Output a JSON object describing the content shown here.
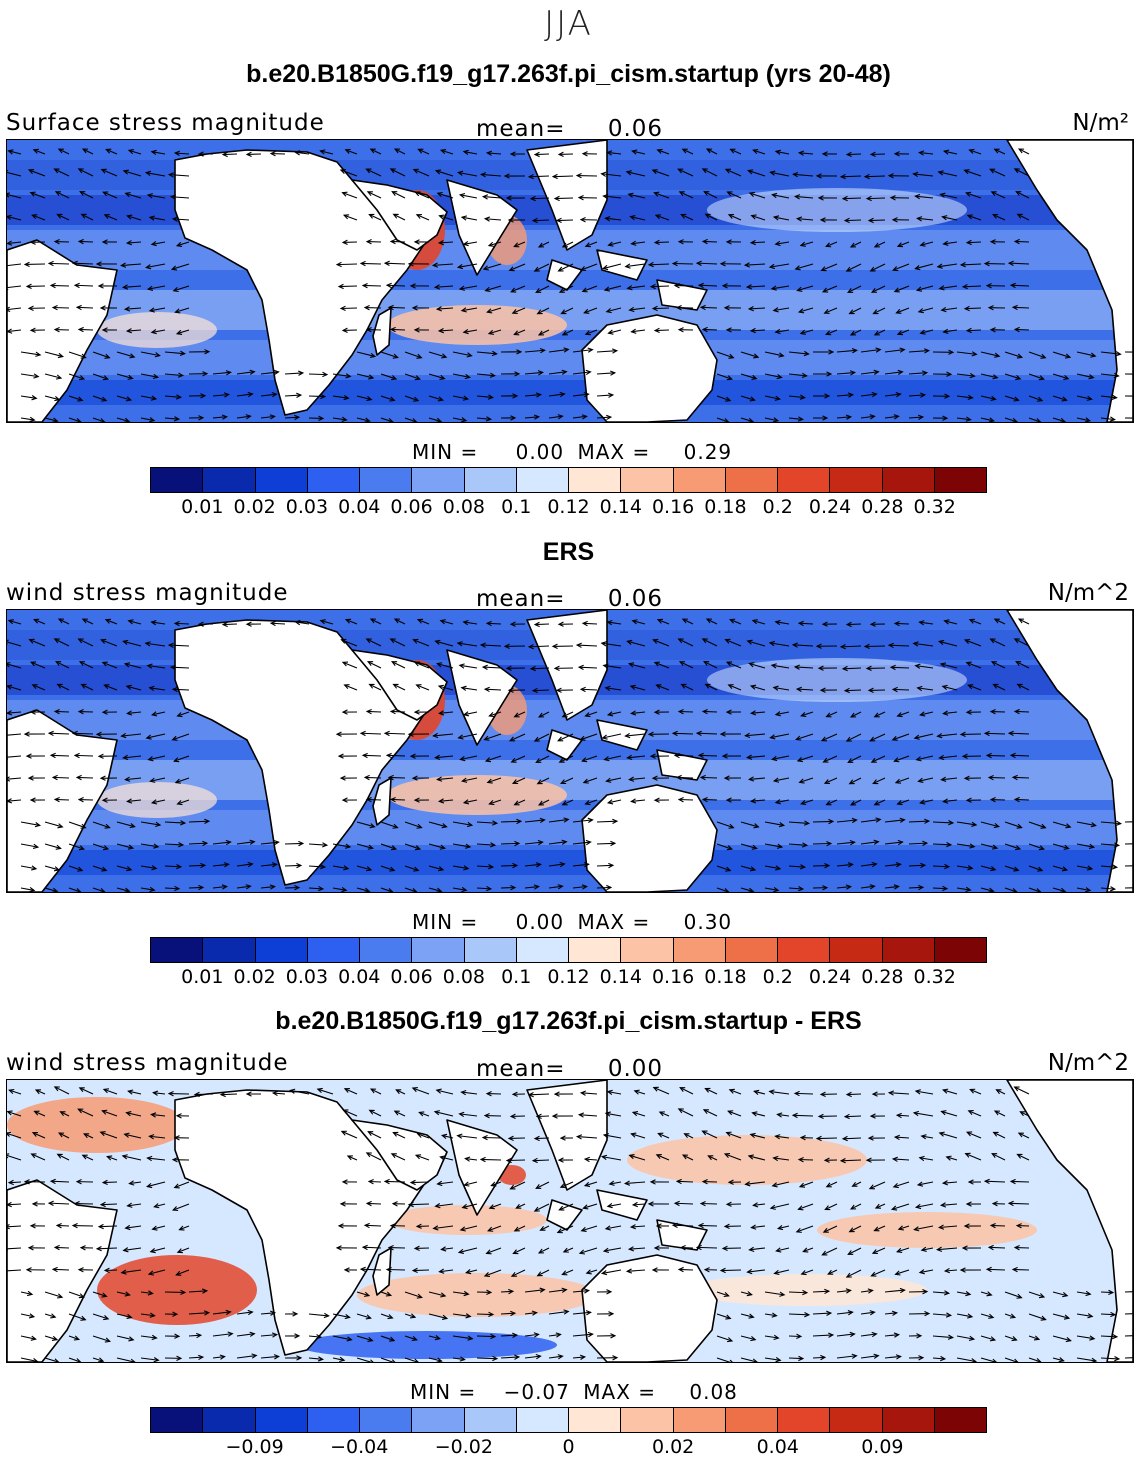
{
  "season": "JJA",
  "colors": {
    "ocean_base": "#3a6fe6",
    "land": "#ffffff",
    "coast": "#000000",
    "diff_base": "#d9ecff"
  },
  "panels": [
    {
      "title": "b.e20.B1850G.f19_g17.263f.pi_cism.startup (yrs 20-48)",
      "variable": "Surface stress magnitude",
      "mean_label": "mean=",
      "mean_value": "0.06",
      "units": "N/m²",
      "min_label": "MIN =",
      "min_value": "0.00",
      "max_label": "MAX =",
      "max_value": "0.29",
      "colorbar": {
        "colors": [
          "#08117a",
          "#0a2aad",
          "#0d3fd6",
          "#2d5ff0",
          "#4a7cf0",
          "#7ba2f5",
          "#aac7fa",
          "#d6e8ff",
          "#ffe6d5",
          "#fdc3a6",
          "#f79b74",
          "#ee7049",
          "#e2452a",
          "#c72a14",
          "#a6160c",
          "#7d0404"
        ],
        "ticks": [
          "0.01",
          "0.02",
          "0.03",
          "0.04",
          "0.06",
          "0.08",
          "0.1",
          "0.12",
          "0.14",
          "0.16",
          "0.18",
          "0.2",
          "0.24",
          "0.28",
          "0.32"
        ]
      }
    },
    {
      "title": "ERS",
      "variable": "wind stress magnitude",
      "mean_label": "mean=",
      "mean_value": "0.06",
      "units": "N/m^2",
      "min_label": "MIN =",
      "min_value": "0.00",
      "max_label": "MAX =",
      "max_value": "0.30",
      "colorbar": {
        "colors": [
          "#08117a",
          "#0a2aad",
          "#0d3fd6",
          "#2d5ff0",
          "#4a7cf0",
          "#7ba2f5",
          "#aac7fa",
          "#d6e8ff",
          "#ffe6d5",
          "#fdc3a6",
          "#f79b74",
          "#ee7049",
          "#e2452a",
          "#c72a14",
          "#a6160c",
          "#7d0404"
        ],
        "ticks": [
          "0.01",
          "0.02",
          "0.03",
          "0.04",
          "0.06",
          "0.08",
          "0.1",
          "0.12",
          "0.14",
          "0.16",
          "0.18",
          "0.2",
          "0.24",
          "0.28",
          "0.32"
        ]
      }
    },
    {
      "title": "b.e20.B1850G.f19_g17.263f.pi_cism.startup - ERS",
      "variable": "wind stress magnitude",
      "mean_label": "mean=",
      "mean_value": "0.00",
      "units": "N/m^2",
      "min_label": "MIN =",
      "min_value": "−0.07",
      "max_label": "MAX =",
      "max_value": "0.08",
      "colorbar": {
        "colors": [
          "#08117a",
          "#0a2aad",
          "#0d3fd6",
          "#2d5ff0",
          "#4a7cf0",
          "#7ba2f5",
          "#aac7fa",
          "#d6e8ff",
          "#ffe6d5",
          "#fdc3a6",
          "#f79b74",
          "#ee7049",
          "#e2452a",
          "#c72a14",
          "#a6160c",
          "#7d0404"
        ],
        "ticks": [
          "−0.09",
          "−0.04",
          "−0.02",
          "0",
          "0.02",
          "0.04",
          "0.09"
        ]
      }
    }
  ]
}
